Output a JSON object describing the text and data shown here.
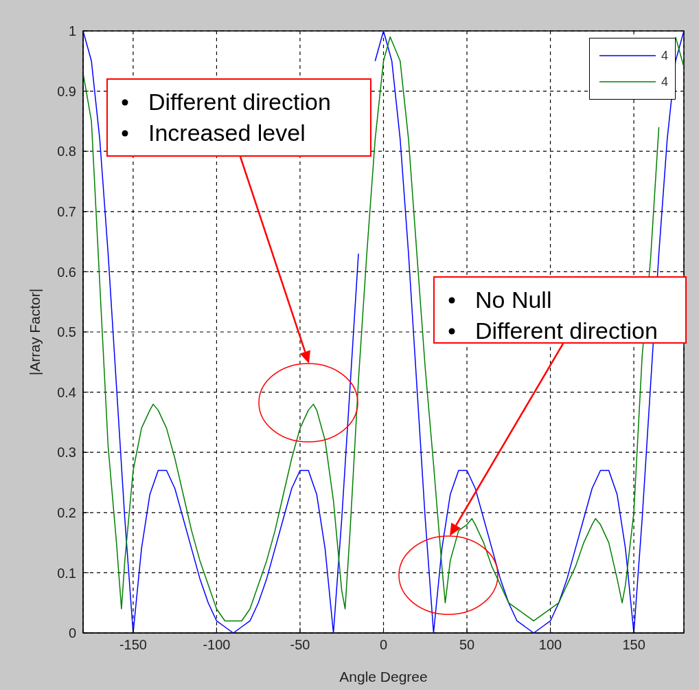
{
  "chart_data": {
    "type": "line",
    "xlabel": "Angle Degree",
    "ylabel": "|Array Factor|",
    "xlim": [
      -180,
      180
    ],
    "xticks": [
      -150,
      -100,
      -50,
      0,
      50,
      100,
      150
    ],
    "ylim": [
      0,
      1
    ],
    "yticks": [
      0,
      0.1,
      0.2,
      0.3,
      0.4,
      0.5,
      0.6,
      0.7,
      0.8,
      0.9,
      1
    ],
    "grid": true,
    "legend": "top right",
    "series": [
      {
        "name": "4",
        "color": "#0000ff",
        "x": [
          -180,
          -175,
          -170,
          -165,
          -160,
          -155,
          -150,
          -145,
          -140,
          -135,
          -130,
          -125,
          -120,
          -115,
          -110,
          -105,
          -100,
          -95,
          -90,
          -85,
          -80,
          -75,
          -70,
          -65,
          -60,
          -55,
          -50,
          -45,
          -40,
          -35,
          -30,
          -25,
          -20,
          -15,
          -10,
          -5,
          0,
          5,
          10,
          15,
          20,
          25,
          30,
          35,
          40,
          45,
          50,
          55,
          60,
          65,
          70,
          75,
          80,
          85,
          90,
          95,
          100,
          105,
          110,
          115,
          120,
          125,
          130,
          135,
          140,
          145,
          150,
          155,
          160,
          165,
          170,
          175,
          180
        ],
        "values": [
          1,
          0.95,
          0.82,
          0.63,
          0.41,
          0.19,
          0,
          0.14,
          0.23,
          0.27,
          0.27,
          0.24,
          0.19,
          0.14,
          0.09,
          0.05,
          0.02,
          0.01,
          0,
          0.01,
          0.02,
          0.05,
          0.09,
          0.14,
          0.19,
          0.24,
          0.27,
          0.27,
          0.23,
          0.14,
          0,
          0.19,
          0.41,
          0.63,
          null,
          0.95,
          1,
          0.95,
          0.82,
          0.63,
          0.41,
          0.19,
          0,
          0.14,
          0.23,
          0.27,
          0.27,
          0.24,
          0.19,
          0.14,
          0.09,
          0.05,
          0.02,
          0.01,
          0,
          0.01,
          0.02,
          0.05,
          0.09,
          0.14,
          0.19,
          0.24,
          0.27,
          0.27,
          0.23,
          0.14,
          0,
          0.19,
          0.41,
          0.63,
          0.82,
          0.95,
          1
        ]
      },
      {
        "name": "4",
        "color": "#008000",
        "x": [
          -180,
          -175,
          -170,
          -165,
          -160,
          -157,
          -155,
          -150,
          -145,
          -140,
          -138,
          -135,
          -130,
          -125,
          -120,
          -115,
          -110,
          -105,
          -100,
          -95,
          -90,
          -85,
          -80,
          -75,
          -70,
          -65,
          -60,
          -55,
          -50,
          -45,
          -42,
          -40,
          -35,
          -30,
          -25,
          -23,
          -20,
          -15,
          -10,
          -5,
          0,
          4,
          10,
          15,
          20,
          25,
          30,
          35,
          37,
          40,
          45,
          50,
          53,
          55,
          60,
          65,
          70,
          75,
          80,
          85,
          90,
          95,
          100,
          105,
          110,
          115,
          120,
          125,
          127,
          130,
          135,
          140,
          143,
          145,
          150,
          155,
          160,
          165,
          170,
          175,
          180
        ],
        "values": [
          0.93,
          0.85,
          0.58,
          0.31,
          0.15,
          0.04,
          0.12,
          0.27,
          0.34,
          0.37,
          0.38,
          0.37,
          0.34,
          0.29,
          0.23,
          0.17,
          0.12,
          0.08,
          0.04,
          0.02,
          0.02,
          0.02,
          0.04,
          0.08,
          0.12,
          0.17,
          0.23,
          0.29,
          0.34,
          0.37,
          0.38,
          0.37,
          0.32,
          0.22,
          0.07,
          0.04,
          0.17,
          0.42,
          0.63,
          0.82,
          0.95,
          0.99,
          0.95,
          0.82,
          0.63,
          0.44,
          0.28,
          0.11,
          0.05,
          0.12,
          0.17,
          0.18,
          0.19,
          0.18,
          0.15,
          0.11,
          0.08,
          0.05,
          0.04,
          0.03,
          0.02,
          0.03,
          0.04,
          0.05,
          0.08,
          0.11,
          0.15,
          0.18,
          0.19,
          0.18,
          0.15,
          0.09,
          0.05,
          0.08,
          0.2,
          0.46,
          0.62,
          0.84,
          null,
          0.99,
          0.94
        ]
      }
    ],
    "annotations": [
      "Different direction\nIncreased level",
      "No Null\nDifferent direction"
    ]
  }
}
